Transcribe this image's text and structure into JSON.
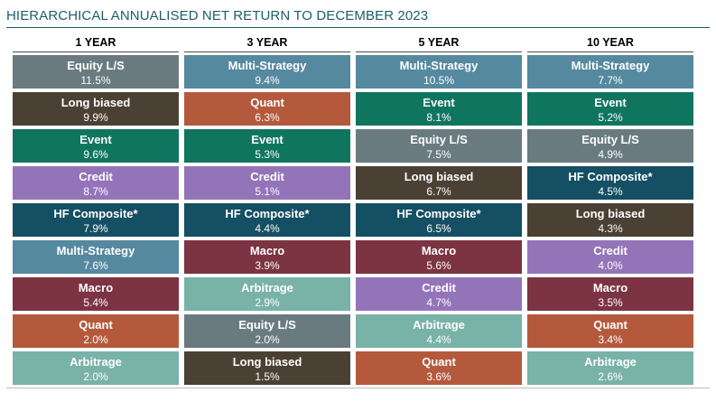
{
  "title": "HIERARCHICAL ANNUALISED NET RETURN TO DECEMBER 2023",
  "colors": {
    "Equity L/S": "#6a7b80",
    "Multi-Strategy": "#55899f",
    "Long biased": "#4a4134",
    "Quant": "#b5593c",
    "Event": "#10755f",
    "Credit": "#9474b9",
    "HF Composite*": "#154f63",
    "Macro": "#7c3442",
    "Arbitrage": "#79b2a6"
  },
  "chart_data": {
    "type": "table",
    "title": "HIERARCHICAL ANNUALISED NET RETURN TO DECEMBER 2023",
    "columns": [
      {
        "header": "1 YEAR",
        "rows": [
          {
            "name": "Equity L/S",
            "value": "11.5%"
          },
          {
            "name": "Long biased",
            "value": "9.9%"
          },
          {
            "name": "Event",
            "value": "9.6%"
          },
          {
            "name": "Credit",
            "value": "8.7%"
          },
          {
            "name": "HF Composite*",
            "value": "7.9%"
          },
          {
            "name": "Multi-Strategy",
            "value": "7.6%"
          },
          {
            "name": "Macro",
            "value": "5.4%"
          },
          {
            "name": "Quant",
            "value": "2.0%"
          },
          {
            "name": "Arbitrage",
            "value": "2.0%"
          }
        ]
      },
      {
        "header": "3 YEAR",
        "rows": [
          {
            "name": "Multi-Strategy",
            "value": "9.4%"
          },
          {
            "name": "Quant",
            "value": "6.3%"
          },
          {
            "name": "Event",
            "value": "5.3%"
          },
          {
            "name": "Credit",
            "value": "5.1%"
          },
          {
            "name": "HF Composite*",
            "value": "4.4%"
          },
          {
            "name": "Macro",
            "value": "3.9%"
          },
          {
            "name": "Arbitrage",
            "value": "2.9%"
          },
          {
            "name": "Equity L/S",
            "value": "2.0%"
          },
          {
            "name": "Long biased",
            "value": "1.5%"
          }
        ]
      },
      {
        "header": "5 YEAR",
        "rows": [
          {
            "name": "Multi-Strategy",
            "value": "10.5%"
          },
          {
            "name": "Event",
            "value": "8.1%"
          },
          {
            "name": "Equity L/S",
            "value": "7.5%"
          },
          {
            "name": "Long biased",
            "value": "6.7%"
          },
          {
            "name": "HF Composite*",
            "value": "6.5%"
          },
          {
            "name": "Macro",
            "value": "5.6%"
          },
          {
            "name": "Credit",
            "value": "4.7%"
          },
          {
            "name": "Arbitrage",
            "value": "4.4%"
          },
          {
            "name": "Quant",
            "value": "3.6%"
          }
        ]
      },
      {
        "header": "10 YEAR",
        "rows": [
          {
            "name": "Multi-Strategy",
            "value": "7.7%"
          },
          {
            "name": "Event",
            "value": "5.2%"
          },
          {
            "name": "Equity L/S",
            "value": "4.9%"
          },
          {
            "name": "HF Composite*",
            "value": "4.5%"
          },
          {
            "name": "Long biased",
            "value": "4.3%"
          },
          {
            "name": "Credit",
            "value": "4.0%"
          },
          {
            "name": "Macro",
            "value": "3.5%"
          },
          {
            "name": "Quant",
            "value": "3.4%"
          },
          {
            "name": "Arbitrage",
            "value": "2.6%"
          }
        ]
      }
    ]
  }
}
